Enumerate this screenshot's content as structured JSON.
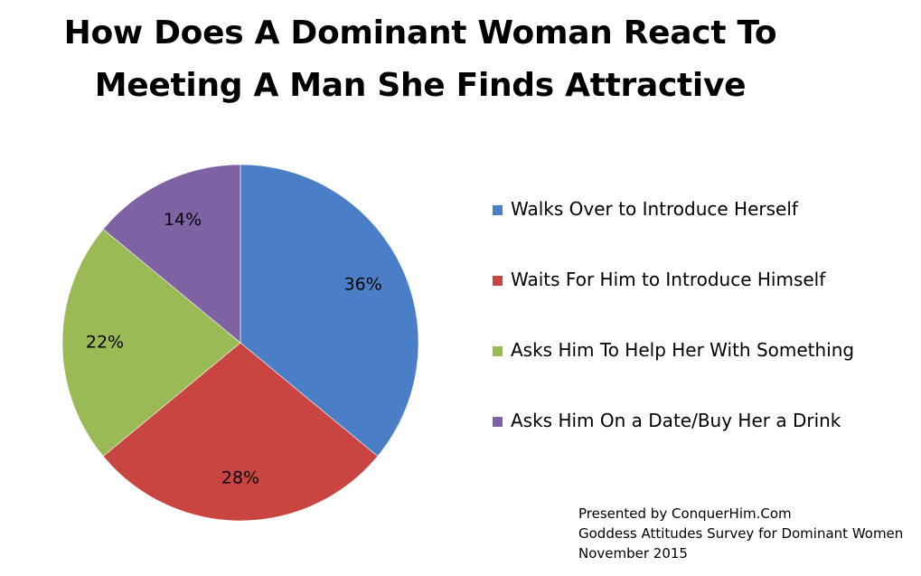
{
  "chart_data": {
    "type": "pie",
    "title_lines": [
      "How Does A Dominant Woman React To",
      "Meeting A Man She Finds Attractive"
    ],
    "legend_position": "right",
    "slices": [
      {
        "label": "Walks Over to Introduce Herself",
        "value": 36,
        "value_label": "36%",
        "color": "#4a7ec6"
      },
      {
        "label": "Waits For Him to Introduce Himself",
        "value": 28,
        "value_label": "28%",
        "color": "#c94542"
      },
      {
        "label": "Asks Him To Help Her With Something",
        "value": 22,
        "value_label": "22%",
        "color": "#9aba55"
      },
      {
        "label": "Asks Him On a Date/Buy Her a Drink",
        "value": 14,
        "value_label": "14%",
        "color": "#7f62a4"
      }
    ]
  },
  "footer": {
    "lines": [
      "Presented by ConquerHim.Com",
      "Goddess Attitudes Survey for Dominant Women",
      "November 2015"
    ]
  }
}
